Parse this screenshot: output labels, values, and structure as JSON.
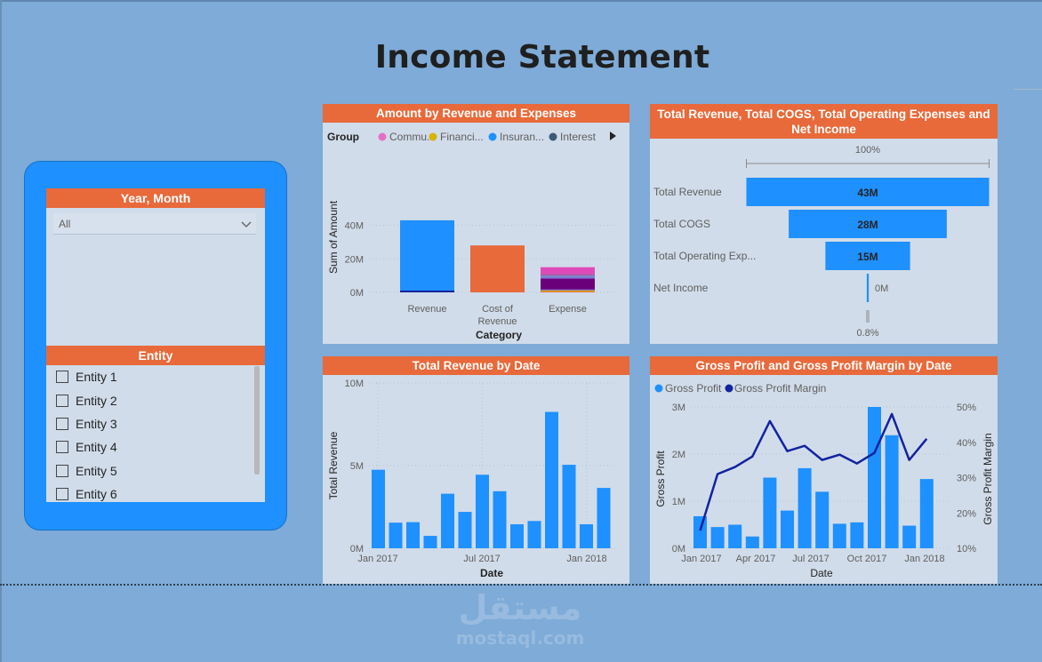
{
  "page": {
    "title": "Income Statement"
  },
  "slicers": {
    "year_month": {
      "title": "Year, Month",
      "selected": "All"
    },
    "entity": {
      "title": "Entity",
      "items": [
        "Entity 1",
        "Entity 2",
        "Entity 3",
        "Entity 4",
        "Entity 5",
        "Entity 6"
      ]
    }
  },
  "watermark": {
    "arabic": "مستقل",
    "latin": "mostaql.com"
  },
  "colors": {
    "header": "#E8693A",
    "bar": "#1E90FF",
    "line": "#12239E",
    "panel": "#D0DCEA",
    "background": "#7EABD7"
  },
  "chart_data": [
    {
      "id": "revenue-expenses",
      "type": "bar",
      "title": "Amount by Revenue and Expenses",
      "legend_title": "Group",
      "legend": [
        {
          "name": "Commu...",
          "color": "#E66FC6"
        },
        {
          "name": "Financi...",
          "color": "#D9B300"
        },
        {
          "name": "Insuran...",
          "color": "#1E90FF"
        },
        {
          "name": "Interest",
          "color": "#3F5A78"
        }
      ],
      "categories": [
        "Revenue",
        "Cost of Revenue",
        "Expense"
      ],
      "category_lines": [
        [
          "Revenue"
        ],
        [
          "Cost of",
          "Revenue"
        ],
        [
          "Expense"
        ]
      ],
      "values": [
        43,
        28,
        15
      ],
      "bar_colors": [
        "#1E90FF",
        "#E8693A",
        "#E8693A"
      ],
      "expense_stack": [
        {
          "value": 0.6,
          "color": "#E8693A"
        },
        {
          "value": 0.6,
          "color": "#D9B300"
        },
        {
          "value": 0.6,
          "color": "#744EC2"
        },
        {
          "value": 6.4,
          "color": "#6B007B"
        },
        {
          "value": 0.8,
          "color": "#8C6ED6"
        },
        {
          "value": 1.0,
          "color": "#6F8CC4"
        },
        {
          "value": 1.0,
          "color": "#B04FA8"
        },
        {
          "value": 4.0,
          "color": "#E04AB8"
        }
      ],
      "xlabel": "Category",
      "ylabel": "Sum of Amount",
      "yticks": [
        "0M",
        "20M",
        "40M"
      ],
      "ylim": [
        0,
        46
      ]
    },
    {
      "id": "funnel",
      "type": "bar",
      "title": "Total Revenue, Total COGS, Total Operating Expenses and Net Income",
      "top_label": "100%",
      "bottom_label": "0.8%",
      "categories": [
        "Total Revenue",
        "Total COGS",
        "Total Operating Exp...",
        "Net Income"
      ],
      "values": [
        43,
        28,
        15,
        0.35
      ],
      "labels": [
        "43M",
        "28M",
        "15M",
        "0M"
      ]
    },
    {
      "id": "revenue-by-date",
      "type": "bar",
      "title": "Total Revenue by Date",
      "xlabel": "Date",
      "ylabel": "Total Revenue",
      "yticks": [
        "0M",
        "5M",
        "10M"
      ],
      "ylim": [
        0,
        10
      ],
      "xticks": [
        "Jan 2017",
        "Jul 2017",
        "Jan 2018"
      ],
      "values": [
        4.75,
        1.55,
        1.58,
        0.75,
        3.3,
        2.2,
        4.45,
        3.45,
        1.45,
        1.65,
        8.25,
        5.05,
        1.45,
        3.65
      ]
    },
    {
      "id": "gross-profit",
      "type": "bar",
      "title": "Gross Profit and Gross Profit Margin by Date",
      "series": [
        {
          "name": "Gross Profit",
          "values": [
            0.68,
            0.45,
            0.5,
            0.25,
            1.5,
            0.8,
            1.7,
            1.2,
            0.52,
            0.55,
            3.0,
            2.4,
            0.48,
            1.47
          ]
        },
        {
          "name": "Gross Profit Margin",
          "values": [
            15,
            31,
            33,
            36,
            46,
            37.5,
            39,
            35,
            36.5,
            34,
            37,
            48,
            35,
            41
          ]
        }
      ],
      "legend_colors": [
        "#1E90FF",
        "#12239E"
      ],
      "xlabel": "Date",
      "ylabel": "Gross Profit",
      "y2label": "Gross Profit Margin",
      "yticks": [
        "0M",
        "1M",
        "2M",
        "3M"
      ],
      "ylim": [
        0,
        3
      ],
      "y2ticks": [
        "10%",
        "20%",
        "30%",
        "40%",
        "50%"
      ],
      "y2lim": [
        10,
        50
      ],
      "xticks": [
        "Jan 2017",
        "Apr 2017",
        "Jul 2017",
        "Oct 2017",
        "Jan 2018"
      ]
    }
  ]
}
